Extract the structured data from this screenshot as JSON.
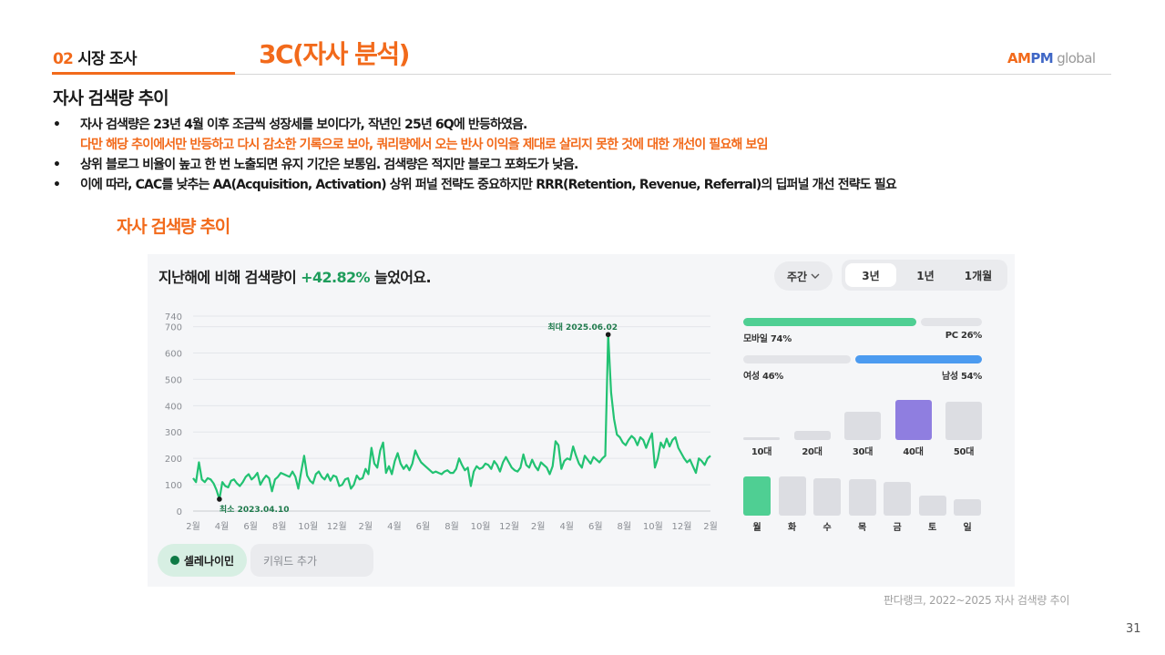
{
  "header": {
    "section_number": "02",
    "section_name": "시장 조사",
    "slide_title": "3C(자사 분석)",
    "logo": {
      "am": "AM",
      "pm": "PM",
      "global": " global"
    }
  },
  "sub_heading": "자사 검색량 추이",
  "bullets": [
    {
      "marker": "•",
      "text": "자사 검색량은 23년 4월 이후 조금씩 성장세를 보이다가, 작년인 25년 6Q에 반등하였음.",
      "highlight": false
    },
    {
      "marker": "",
      "text": "다만 해당 추이에서만 반등하고 다시 감소한 기록으로 보아, 쿼리량에서 오는 반사 이익을 제대로 살리지 못한 것에 대한 개선이 필요해 보임",
      "highlight": true
    },
    {
      "marker": "•",
      "text": "상위 블로그 비율이 높고 한 번 노출되면 유지 기간은 보통임. 검색량은 적지만 블로그 포화도가 낮음.",
      "highlight": false
    },
    {
      "marker": "•",
      "text": "이에 따라, CAC를 낮추는 AA(Acquisition, Activation) 상위 퍼널 전략도 중요하지만 RRR(Retention, Revenue, Referral)의 딥퍼널 개선 전략도 필요",
      "highlight": false
    }
  ],
  "chart_caption": "자사 검색량 추이",
  "widget": {
    "title_prefix": "지난해에 비해 검색량이",
    "title_pct": "+42.82%",
    "title_suffix": "늘었어요.",
    "period_dropdown": "주간",
    "tabs": [
      "3년",
      "1년",
      "1개월"
    ],
    "active_tab": "3년",
    "keyword_chip": "셀레나이민",
    "add_keyword_placeholder": "키워드 추가",
    "colors": {
      "line": "#22c272",
      "accent": "#1f9d5c",
      "mobile": "#4fcf93",
      "male": "#4c9bf0",
      "age_highlight": "#8f7ee0",
      "monday": "#4fcf93"
    },
    "device": {
      "mobile_label": "모바일 74%",
      "mobile_pct": 74,
      "pc_label": "PC 26%",
      "pc_pct": 26
    },
    "gender": {
      "female_label": "여성 46%",
      "female_pct": 46,
      "male_label": "남성 54%",
      "male_pct": 54
    },
    "age_groups": [
      {
        "label": "10대",
        "value": 3
      },
      {
        "label": "20대",
        "value": 22
      },
      {
        "label": "30대",
        "value": 70
      },
      {
        "label": "40대",
        "value": 100
      },
      {
        "label": "50대",
        "value": 95
      }
    ],
    "weekdays": [
      {
        "label": "월",
        "value": 100
      },
      {
        "label": "화",
        "value": 100
      },
      {
        "label": "수",
        "value": 95
      },
      {
        "label": "목",
        "value": 92
      },
      {
        "label": "금",
        "value": 85
      },
      {
        "label": "토",
        "value": 52
      },
      {
        "label": "일",
        "value": 42
      }
    ]
  },
  "chart_data": {
    "type": "line",
    "title": "",
    "xlabel": "",
    "ylabel": "",
    "ylim": [
      0,
      740
    ],
    "yticks": [
      0,
      100,
      200,
      300,
      400,
      500,
      600,
      700,
      740
    ],
    "x_tick_labels": [
      "2월",
      "4월",
      "6월",
      "8월",
      "10월",
      "12월",
      "2월",
      "4월",
      "6월",
      "8월",
      "10월",
      "12월",
      "2월",
      "4월",
      "6월",
      "8월",
      "10월",
      "12월",
      "2월"
    ],
    "grid": true,
    "annotations": [
      {
        "label": "최대 2025.06.02",
        "index": 142,
        "value": 670
      },
      {
        "label": "최소 2023.04.10",
        "index": 9,
        "value": 45
      }
    ],
    "series": [
      {
        "values": [
          125,
          110,
          185,
          120,
          110,
          125,
          120,
          105,
          80,
          45,
          110,
          95,
          90,
          115,
          120,
          105,
          95,
          110,
          130,
          140,
          120,
          130,
          145,
          100,
          120,
          135,
          125,
          75,
          120,
          130,
          145,
          140,
          135,
          130,
          150,
          130,
          85,
          150,
          210,
          135,
          115,
          105,
          140,
          150,
          130,
          120,
          140,
          115,
          135,
          130,
          95,
          100,
          120,
          125,
          85,
          100,
          135,
          120,
          125,
          160,
          140,
          240,
          180,
          165,
          230,
          260,
          145,
          170,
          140,
          190,
          220,
          180,
          160,
          175,
          155,
          180,
          230,
          205,
          185,
          175,
          165,
          155,
          145,
          150,
          145,
          140,
          150,
          155,
          145,
          145,
          160,
          200,
          175,
          155,
          165,
          95,
          150,
          170,
          160,
          165,
          180,
          175,
          160,
          190,
          175,
          150,
          185,
          205,
          185,
          165,
          155,
          150,
          165,
          215,
          175,
          165,
          195,
          170,
          155,
          185,
          175,
          165,
          140,
          170,
          265,
          250,
          160,
          190,
          200,
          195,
          245,
          210,
          180,
          165,
          210,
          195,
          180,
          205,
          195,
          185,
          200,
          210,
          670,
          450,
          350,
          290,
          280,
          260,
          250,
          270,
          285,
          275,
          250,
          280,
          270,
          240,
          270,
          295,
          165,
          200,
          260,
          240,
          275,
          245,
          270,
          280,
          240,
          220,
          200,
          185,
          195,
          170,
          145,
          200,
          190,
          175,
          200,
          210
        ]
      }
    ]
  },
  "source_note": "판다랭크, 2022~2025 자사 검색량 추이",
  "page_number": "31"
}
